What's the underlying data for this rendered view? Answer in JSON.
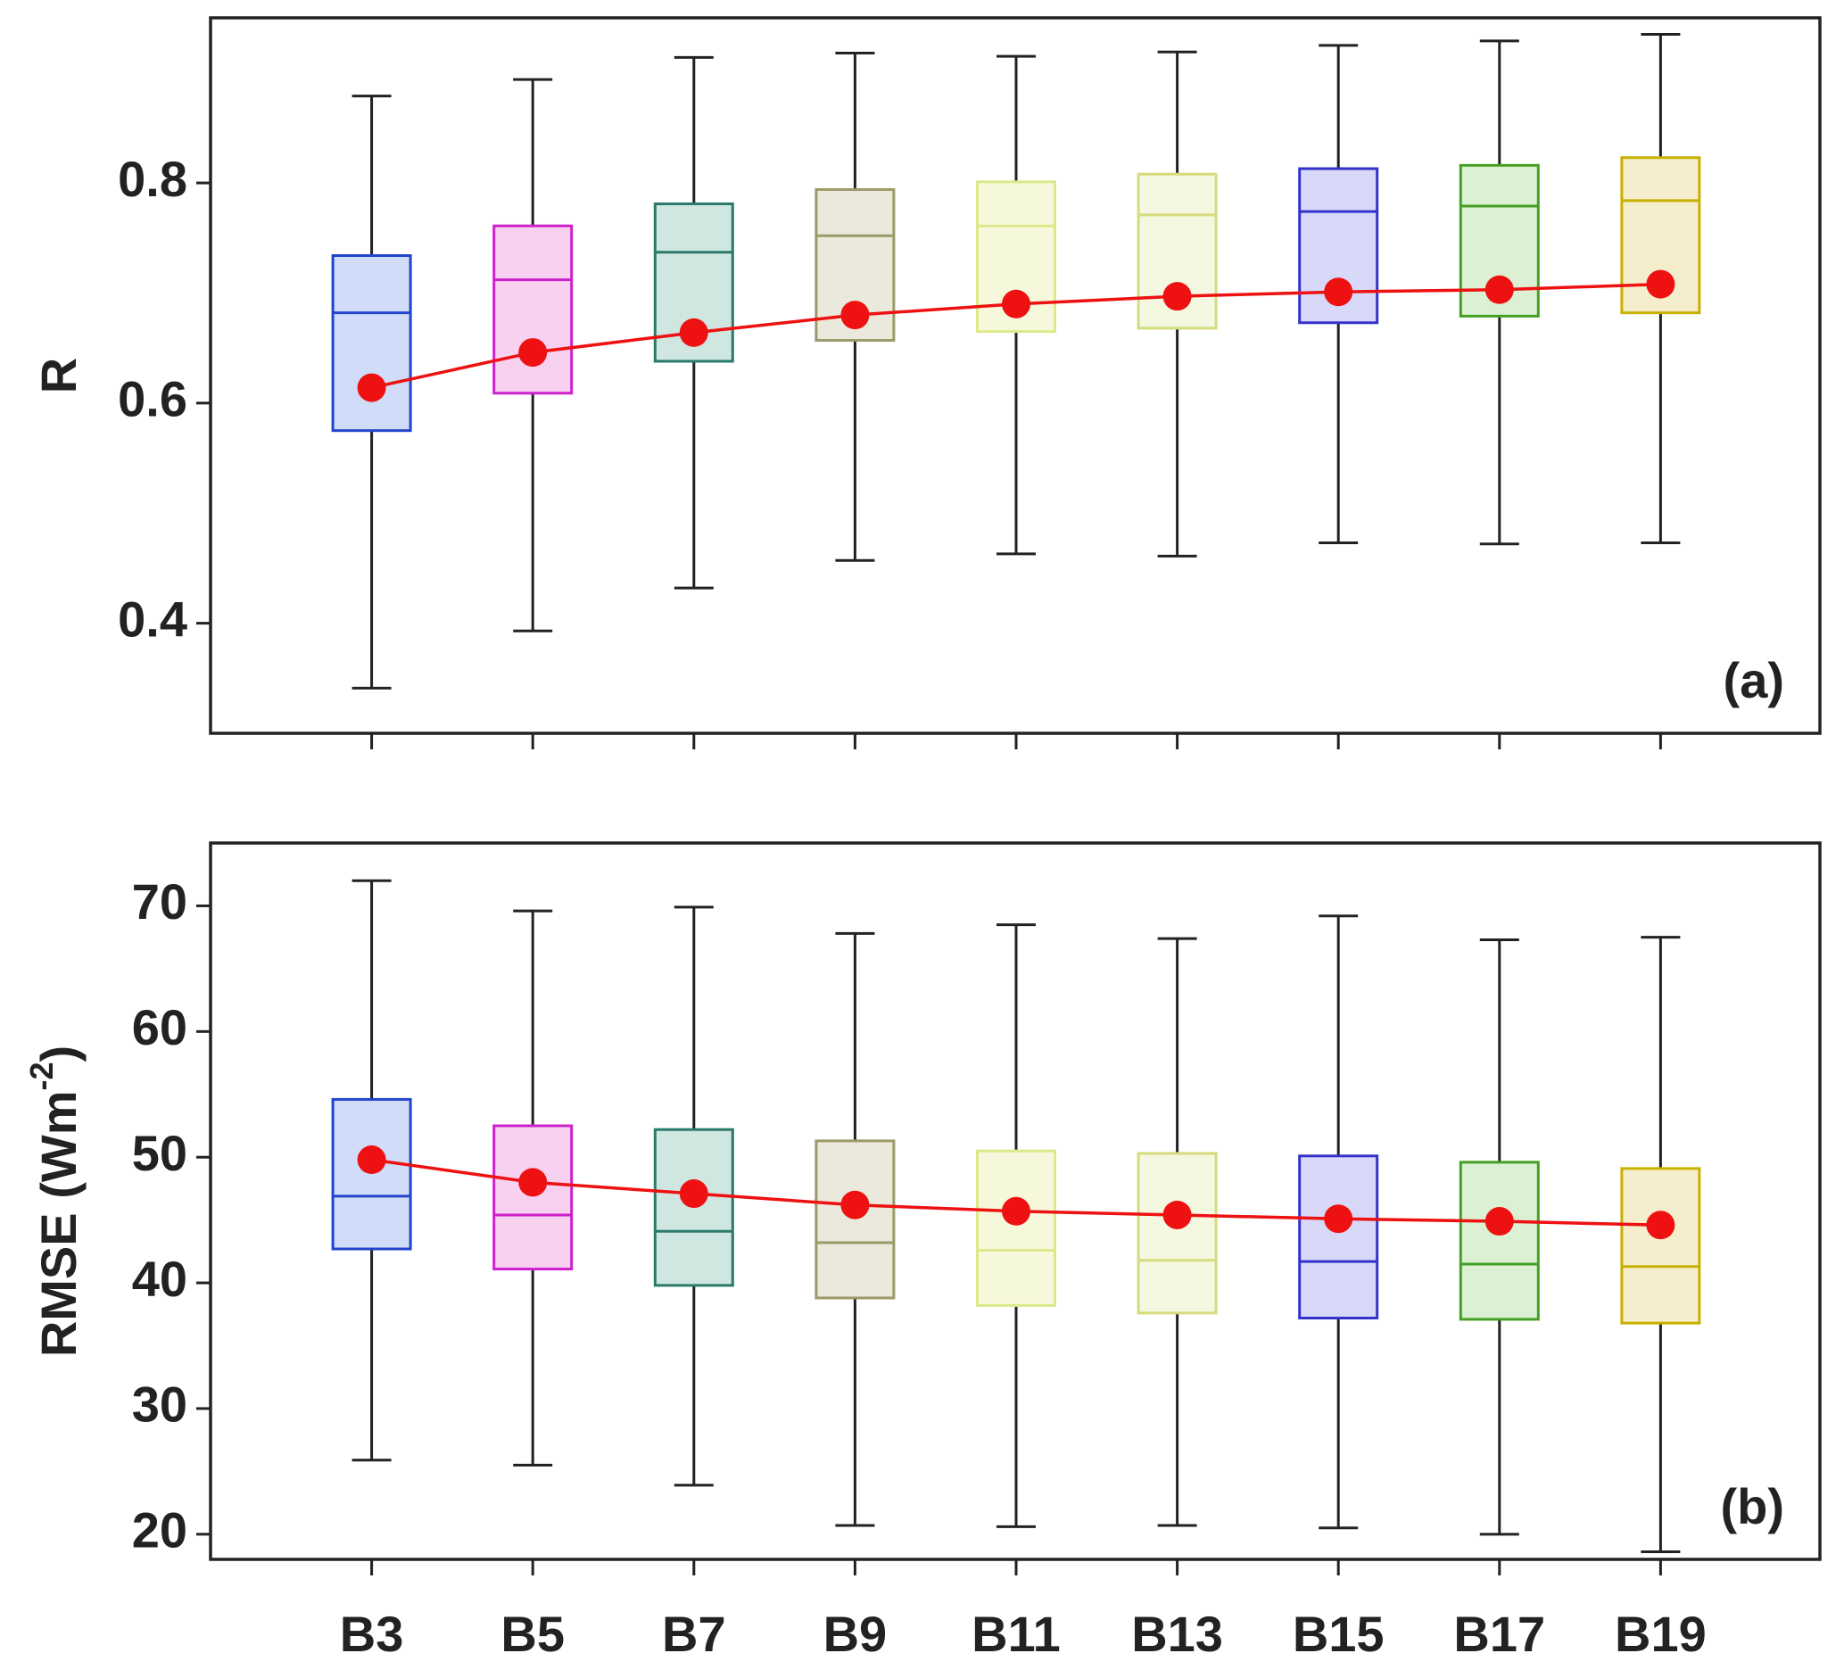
{
  "chart_data": [
    {
      "type": "box",
      "panel_label": "(a)",
      "ylabel": [
        "R"
      ],
      "ylim": [
        0.3,
        0.95
      ],
      "yticks": [
        0.4,
        0.6,
        0.8
      ],
      "colors": [
        "#2244cc",
        "#cc22cc",
        "#2a7a6a",
        "#9a9a6a",
        "#dde88a",
        "#d4dc7c",
        "#3333cc",
        "#44a022",
        "#c8b000"
      ],
      "fills": [
        "#d0dcf8",
        "#f8d0f0",
        "#d0e6e0",
        "#ebe9dc",
        "#f6f8dc",
        "#f4f8e0",
        "#d8d8f8",
        "#dcf0d4",
        "#f4eecc"
      ],
      "mean_color": "#ee1111",
      "boxes": [
        {
          "whislo": 0.341,
          "q1": 0.575,
          "med": 0.682,
          "q3": 0.734,
          "whishi": 0.879
        },
        {
          "whislo": 0.393,
          "q1": 0.609,
          "med": 0.712,
          "q3": 0.761,
          "whishi": 0.894
        },
        {
          "whislo": 0.432,
          "q1": 0.638,
          "med": 0.737,
          "q3": 0.781,
          "whishi": 0.914
        },
        {
          "whislo": 0.457,
          "q1": 0.657,
          "med": 0.752,
          "q3": 0.794,
          "whishi": 0.918
        },
        {
          "whislo": 0.463,
          "q1": 0.665,
          "med": 0.761,
          "q3": 0.801,
          "whishi": 0.915
        },
        {
          "whislo": 0.461,
          "q1": 0.668,
          "med": 0.771,
          "q3": 0.808,
          "whishi": 0.919
        },
        {
          "whislo": 0.473,
          "q1": 0.673,
          "med": 0.774,
          "q3": 0.813,
          "whishi": 0.925
        },
        {
          "whislo": 0.472,
          "q1": 0.679,
          "med": 0.779,
          "q3": 0.816,
          "whishi": 0.929
        },
        {
          "whislo": 0.473,
          "q1": 0.682,
          "med": 0.784,
          "q3": 0.823,
          "whishi": 0.935
        }
      ],
      "means": [
        0.614,
        0.646,
        0.664,
        0.68,
        0.69,
        0.697,
        0.701,
        0.703,
        0.708
      ]
    },
    {
      "type": "box",
      "panel_label": "(b)",
      "ylabel": [
        "RMSE (Wm",
        "-2",
        ")"
      ],
      "categories": [
        "B3",
        "B5",
        "B7",
        "B9",
        "B11",
        "B13",
        "B15",
        "B17",
        "B19"
      ],
      "ylim": [
        18,
        75
      ],
      "yticks": [
        20,
        30,
        40,
        50,
        60,
        70
      ],
      "colors": [
        "#2244cc",
        "#cc22cc",
        "#2a7a6a",
        "#9a9a6a",
        "#dde88a",
        "#d4dc7c",
        "#3333cc",
        "#44a022",
        "#c8b000"
      ],
      "fills": [
        "#d0dcf8",
        "#f8d0f0",
        "#d0e6e0",
        "#ebe9dc",
        "#f6f8dc",
        "#f4f8e0",
        "#d8d8f8",
        "#dcf0d4",
        "#f4eecc"
      ],
      "mean_color": "#ee1111",
      "boxes": [
        {
          "whislo": 25.9,
          "q1": 42.7,
          "med": 46.9,
          "q3": 54.6,
          "whishi": 72.0
        },
        {
          "whislo": 25.5,
          "q1": 41.1,
          "med": 45.4,
          "q3": 52.5,
          "whishi": 69.6
        },
        {
          "whislo": 23.9,
          "q1": 39.8,
          "med": 44.1,
          "q3": 52.2,
          "whishi": 69.9
        },
        {
          "whislo": 20.7,
          "q1": 38.8,
          "med": 43.2,
          "q3": 51.3,
          "whishi": 67.8
        },
        {
          "whislo": 20.6,
          "q1": 38.2,
          "med": 42.6,
          "q3": 50.5,
          "whishi": 68.5
        },
        {
          "whislo": 20.7,
          "q1": 37.6,
          "med": 41.8,
          "q3": 50.3,
          "whishi": 67.4
        },
        {
          "whislo": 20.5,
          "q1": 37.2,
          "med": 41.7,
          "q3": 50.1,
          "whishi": 69.2
        },
        {
          "whislo": 20.0,
          "q1": 37.1,
          "med": 41.5,
          "q3": 49.6,
          "whishi": 67.3
        },
        {
          "whislo": 18.6,
          "q1": 36.8,
          "med": 41.3,
          "q3": 49.1,
          "whishi": 67.5
        }
      ],
      "means": [
        49.8,
        48.0,
        47.1,
        46.2,
        45.7,
        45.4,
        45.1,
        44.9,
        44.6
      ]
    }
  ]
}
